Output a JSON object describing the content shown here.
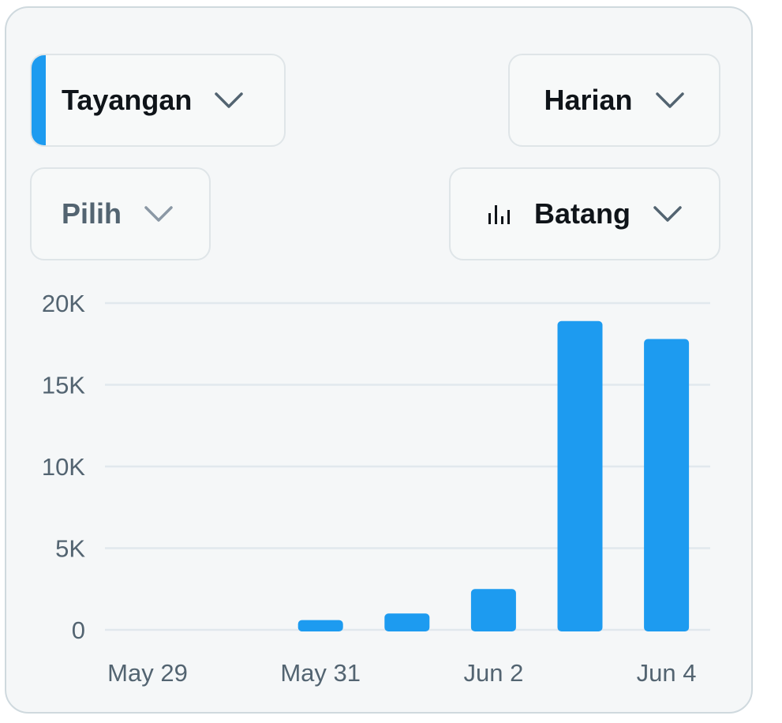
{
  "controls": {
    "metric": {
      "label": "Tayangan",
      "accent_color": "#1d9bf0"
    },
    "period": {
      "label": "Harian"
    },
    "compare": {
      "label": "Pilih"
    },
    "chart_type": {
      "label": "Batang",
      "icon": "bar-chart-icon"
    }
  },
  "colors": {
    "bar": "#1d9bf0",
    "grid": "#e1e8ed",
    "tick_text": "#536471"
  },
  "chart_data": {
    "type": "bar",
    "categories": [
      "May 29",
      "May 30",
      "May 31",
      "Jun 1",
      "Jun 2",
      "Jun 3",
      "Jun 4"
    ],
    "values": [
      0,
      0,
      600,
      1000,
      2500,
      18900,
      17800
    ],
    "x_tick_labels": [
      "May 29",
      "May 31",
      "Jun 2",
      "Jun 4"
    ],
    "y_ticks": [
      0,
      5000,
      10000,
      15000,
      20000
    ],
    "y_tick_labels": [
      "0",
      "5K",
      "10K",
      "15K",
      "20K"
    ],
    "ylim": [
      0,
      20000
    ],
    "grid": true
  }
}
